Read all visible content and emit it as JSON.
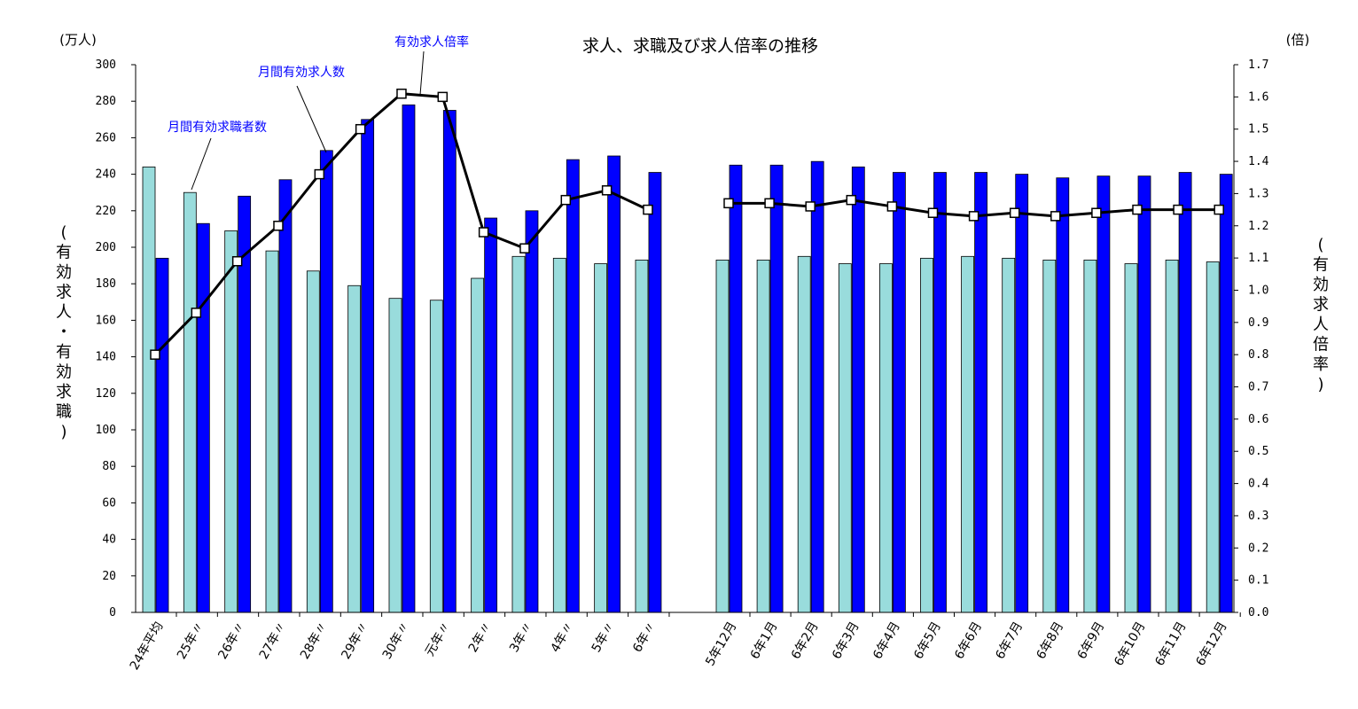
{
  "chart_data": {
    "type": "bar",
    "title": "求人、求職及び求人倍率の推移",
    "left_axis": {
      "unit": "(万人)",
      "label": "(有効求人・有効求職)",
      "label_chars": [
        "(",
        "有",
        "効",
        "求",
        "人",
        "・",
        "有",
        "効",
        "求",
        "職",
        ")"
      ],
      "ylim": [
        0,
        300
      ],
      "ticks": [
        "0",
        "20",
        "40",
        "60",
        "80",
        "100",
        "120",
        "140",
        "160",
        "180",
        "200",
        "220",
        "240",
        "260",
        "280",
        "300"
      ]
    },
    "right_axis": {
      "unit": "(倍)",
      "label": "(有効求人倍率)",
      "label_chars": [
        "(",
        "有",
        "効",
        "求",
        "人",
        "倍",
        "率",
        ")"
      ],
      "ylim": [
        0,
        1.7
      ],
      "ticks": [
        "0.0",
        "0.1",
        "0.2",
        "0.3",
        "0.4",
        "0.5",
        "0.6",
        "0.7",
        "0.8",
        "0.9",
        "1.0",
        "1.1",
        "1.2",
        "1.3",
        "1.4",
        "1.5",
        "1.6",
        "1.7"
      ]
    },
    "categories": [
      "24年平均",
      "25年〃",
      "26年〃",
      "27年〃",
      "28年〃",
      "29年〃",
      "30年〃",
      "元年〃",
      "2年〃",
      "3年〃",
      "4年〃",
      "5年〃",
      "6年〃",
      "5年12月",
      "6年1月",
      "6年2月",
      "6年3月",
      "6年4月",
      "6年5月",
      "6年6月",
      "6年7月",
      "6年8月",
      "6年9月",
      "6年10月",
      "6年11月",
      "6年12月"
    ],
    "series": [
      {
        "name": "月間有効求職者数",
        "axis": "left",
        "color": "#99dcdc",
        "values": [
          244,
          230,
          209,
          198,
          187,
          179,
          172,
          171,
          183,
          195,
          194,
          191,
          193,
          193,
          193,
          195,
          191,
          191,
          194,
          195,
          194,
          193,
          193,
          191,
          193,
          192
        ]
      },
      {
        "name": "月間有効求人数",
        "axis": "left",
        "color": "#0000ff",
        "values": [
          194,
          213,
          228,
          237,
          253,
          270,
          278,
          275,
          216,
          220,
          248,
          250,
          241,
          245,
          245,
          247,
          244,
          241,
          241,
          241,
          240,
          238,
          239,
          239,
          241,
          240
        ]
      },
      {
        "name": "有効求人倍率",
        "axis": "right",
        "type": "line",
        "color": "#000000",
        "values": [
          0.8,
          0.93,
          1.09,
          1.2,
          1.36,
          1.5,
          1.61,
          1.6,
          1.18,
          1.13,
          1.28,
          1.31,
          1.25,
          1.27,
          1.27,
          1.26,
          1.28,
          1.26,
          1.24,
          1.23,
          1.24,
          1.23,
          1.24,
          1.25,
          1.25,
          1.25
        ]
      }
    ],
    "annotations": [
      "有効求人倍率",
      "月間有効求人数",
      "月間有効求職者数"
    ],
    "grid": false,
    "legend": "none"
  }
}
